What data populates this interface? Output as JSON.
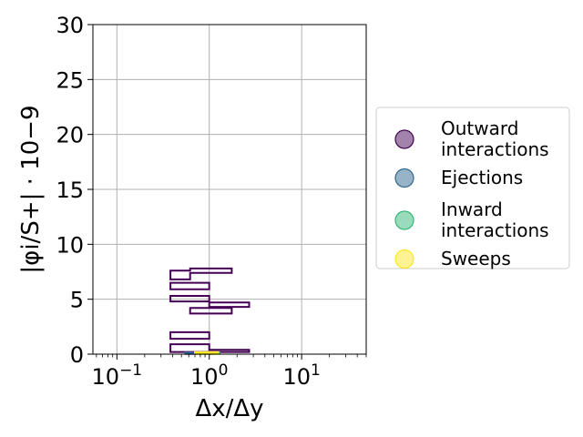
{
  "chart_data": {
    "type": "contour",
    "xlabel": "Δx/Δy",
    "ylabel": "|φi/S+| · 10−9",
    "xscale": "log",
    "xlim": [
      0.055,
      50
    ],
    "ylim": [
      0,
      30
    ],
    "xticks": [
      {
        "value": 0.1,
        "base": "10",
        "exp": "−1"
      },
      {
        "value": 1,
        "base": "10",
        "exp": "0"
      },
      {
        "value": 10,
        "base": "10",
        "exp": "1"
      }
    ],
    "yticks": [
      0,
      5,
      10,
      15,
      20,
      25,
      30
    ],
    "grid": true,
    "legend_position": "right",
    "series": [
      {
        "name": "Outward interactions",
        "label_lines": [
          "Outward",
          "interactions"
        ],
        "color": "#440154",
        "fill": "#a283aa",
        "contours": [
          [
            [
              0.38,
              6.8
            ],
            [
              0.62,
              6.8
            ],
            [
              0.62,
              7.4
            ],
            [
              1.75,
              7.4
            ],
            [
              1.75,
              7.8
            ],
            [
              0.62,
              7.8
            ],
            [
              0.62,
              7.6
            ],
            [
              0.38,
              7.6
            ]
          ],
          [
            [
              0.38,
              5.9
            ],
            [
              1.0,
              5.9
            ],
            [
              1.0,
              6.5
            ],
            [
              0.38,
              6.5
            ]
          ],
          [
            [
              0.38,
              4.8
            ],
            [
              1.0,
              4.8
            ],
            [
              1.0,
              4.3
            ],
            [
              2.7,
              4.3
            ],
            [
              2.7,
              4.7
            ],
            [
              1.0,
              4.7
            ],
            [
              1.0,
              5.3
            ],
            [
              0.38,
              5.3
            ]
          ],
          [
            [
              0.62,
              3.7
            ],
            [
              1.75,
              3.7
            ],
            [
              1.75,
              4.2
            ],
            [
              0.62,
              4.2
            ]
          ],
          [
            [
              0.38,
              1.4
            ],
            [
              1.0,
              1.4
            ],
            [
              1.0,
              2.0
            ],
            [
              0.38,
              2.0
            ]
          ],
          [
            [
              0.38,
              0.2
            ],
            [
              2.7,
              0.2
            ],
            [
              2.7,
              0.4
            ],
            [
              1.0,
              0.4
            ],
            [
              1.0,
              0.9
            ],
            [
              0.38,
              0.9
            ]
          ]
        ]
      },
      {
        "name": "Ejections",
        "label_lines": [
          "Ejections"
        ],
        "color": "#31688e",
        "fill": "#97b3c6",
        "contours": [
          [
            [
              0.55,
              0.02
            ],
            [
              1.1,
              0.02
            ],
            [
              1.1,
              0.1
            ],
            [
              0.55,
              0.14
            ]
          ]
        ]
      },
      {
        "name": "Inward interactions",
        "label_lines": [
          "Inward",
          "interactions"
        ],
        "color": "#35b779",
        "fill": "#9adbbc",
        "contours": [
          [
            [
              0.78,
              0.03
            ],
            [
              1.3,
              0.03
            ],
            [
              1.3,
              0.12
            ],
            [
              0.78,
              0.12
            ]
          ]
        ]
      },
      {
        "name": "Sweeps",
        "label_lines": [
          "Sweeps"
        ],
        "color": "#fde725",
        "fill": "#fef392",
        "contours": [
          [
            [
              0.7,
              0.02
            ],
            [
              1.25,
              0.02
            ],
            [
              1.25,
              0.17
            ],
            [
              0.7,
              0.17
            ]
          ]
        ]
      }
    ]
  }
}
